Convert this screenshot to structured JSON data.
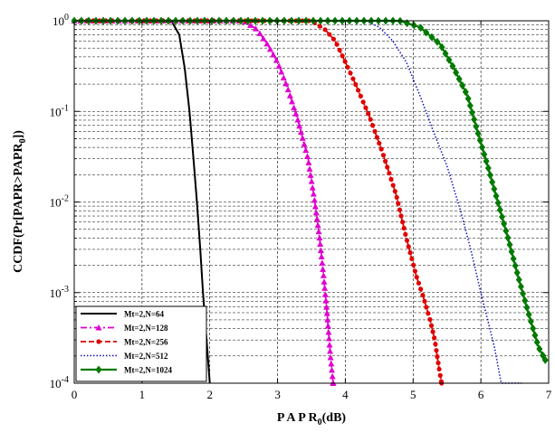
{
  "chart_data": {
    "type": "line",
    "title": "",
    "xlabel_parts": [
      "P A P R",
      "0",
      "(dB)"
    ],
    "ylabel_parts": [
      "CCDF(Pr[PAPR>PAPR",
      "0",
      "])"
    ],
    "xlim": [
      0,
      7
    ],
    "ylim": [
      0.0001,
      1
    ],
    "yscale": "log",
    "grid": true,
    "legend_position": "bottom-left",
    "x_ticks": [
      "0",
      "1",
      "2",
      "3",
      "4",
      "5",
      "6",
      "7"
    ],
    "y_ticks": [
      {
        "base": "10",
        "exp": "0"
      },
      {
        "base": "10",
        "exp": "-1"
      },
      {
        "base": "10",
        "exp": "-2"
      },
      {
        "base": "10",
        "exp": "-3"
      },
      {
        "base": "10",
        "exp": "-4"
      }
    ],
    "series": [
      {
        "name": "Mt=2,N=64",
        "color": "#000000",
        "dash": "",
        "marker": "none",
        "width": 2,
        "x": [
          1.3,
          1.45,
          1.55,
          1.63,
          1.7,
          1.76,
          1.81,
          1.86,
          1.9,
          1.94,
          1.97,
          2.0
        ],
        "y": [
          1,
          0.95,
          0.7,
          0.3,
          0.1,
          0.03,
          0.01,
          0.003,
          0.001,
          0.0004,
          0.0002,
          0.0001
        ]
      },
      {
        "name": "Mt=2,N=128",
        "color": "#e000d0",
        "dash": "7,3,2,3",
        "marker": "triangle",
        "width": 1.8,
        "x": [
          0,
          2.5,
          2.7,
          2.85,
          3.0,
          3.15,
          3.3,
          3.45,
          3.55,
          3.62,
          3.68,
          3.73,
          3.78,
          3.82
        ],
        "y": [
          1,
          1,
          0.8,
          0.55,
          0.35,
          0.18,
          0.08,
          0.03,
          0.01,
          0.004,
          0.0015,
          0.0006,
          0.0002,
          0.0001
        ]
      },
      {
        "name": "Mt=2,N=256",
        "color": "#e00000",
        "dash": "6,3",
        "marker": "dot",
        "width": 1.8,
        "x": [
          0,
          3.5,
          3.7,
          3.85,
          4.0,
          4.15,
          4.35,
          4.55,
          4.75,
          4.9,
          5.05,
          5.15,
          5.25,
          5.32,
          5.38,
          5.42
        ],
        "y": [
          1,
          1,
          0.8,
          0.6,
          0.35,
          0.2,
          0.09,
          0.035,
          0.012,
          0.004,
          0.0015,
          0.0009,
          0.0005,
          0.0003,
          0.00015,
          0.0001
        ]
      },
      {
        "name": "Mt=2,N=512",
        "color": "#1010c0",
        "dash": "1.5,2",
        "marker": "none",
        "width": 1.5,
        "x": [
          0,
          4.3,
          4.5,
          4.7,
          4.9,
          5.1,
          5.3,
          5.5,
          5.7,
          5.85,
          6.0,
          6.1,
          6.2,
          6.3,
          6.45,
          6.6
        ],
        "y": [
          1,
          1,
          0.85,
          0.6,
          0.35,
          0.15,
          0.06,
          0.025,
          0.008,
          0.003,
          0.001,
          0.0005,
          0.00025,
          0.0001,
          0.0001,
          0.0001
        ]
      },
      {
        "name": "Mt=2,N=1024",
        "color": "#007a00",
        "dash": "",
        "marker": "diamond",
        "width": 2.2,
        "x": [
          0,
          4.8,
          5.1,
          5.4,
          5.6,
          5.8,
          5.95,
          6.1,
          6.25,
          6.4,
          6.55,
          6.7,
          6.85,
          6.95
        ],
        "y": [
          1,
          1,
          0.85,
          0.55,
          0.3,
          0.15,
          0.06,
          0.025,
          0.01,
          0.004,
          0.0015,
          0.0006,
          0.00025,
          0.00018
        ]
      }
    ]
  }
}
